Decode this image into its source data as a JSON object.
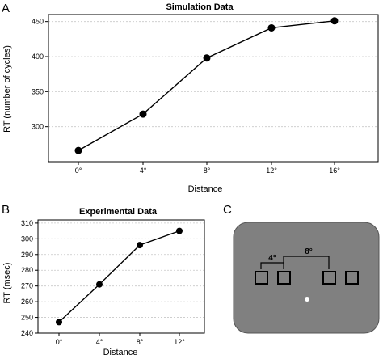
{
  "chart_data": [
    {
      "panel": "A",
      "type": "line",
      "title": "Simulation Data",
      "xlabel": "Distance",
      "ylabel": "RT (number of cycles)",
      "categories": [
        "0°",
        "4°",
        "8°",
        "12°",
        "16°"
      ],
      "values": [
        266,
        318,
        398,
        441,
        451
      ],
      "ylim": [
        250,
        460
      ],
      "yticks": [
        300,
        350,
        400,
        450
      ],
      "grid": true
    },
    {
      "panel": "B",
      "type": "line",
      "title": "Experimental Data",
      "xlabel": "Distance",
      "ylabel": "RT (msec)",
      "categories": [
        "0°",
        "4°",
        "8°",
        "12°"
      ],
      "values": [
        247,
        271,
        296,
        305
      ],
      "ylim": [
        240,
        312
      ],
      "yticks": [
        240,
        250,
        260,
        270,
        280,
        290,
        300,
        310
      ],
      "grid": true
    }
  ],
  "panel_c": {
    "letter": "C",
    "label_small": "4°",
    "label_large": "8°",
    "background_color": "#808080"
  }
}
